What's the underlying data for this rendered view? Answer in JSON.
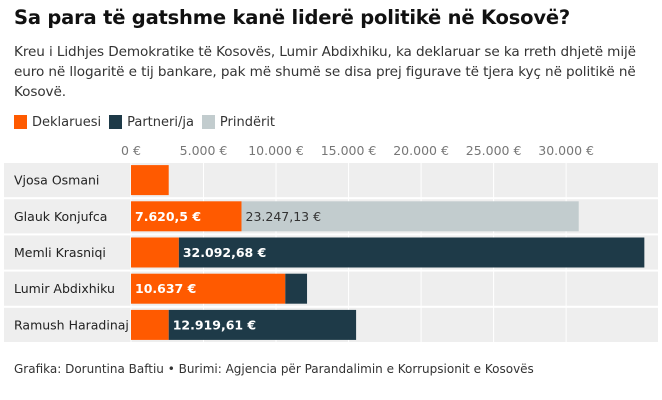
{
  "title": "Sa para të gatshme kanë liderë politikë në Kosovë?",
  "subtitle": "Kreu i Lidhjes Demokratike të Kosovës, Lumir Abdixhiku, ka deklaruar se ka rreth dhjetë mijë euro në llogaritë e tij bankare, pak më shumë se disa prej figurave të tjera kyç në politikë në Kosovë.",
  "footer": "Grafika: Doruntina Baftiu • Burimi: Agjencia për Parandalimin e Korrupsionit e Kosovës",
  "chart_data": {
    "type": "bar",
    "orientation": "horizontal",
    "stacked": true,
    "categories": [
      "Vjosa Osmani",
      "Glauk Konjufca",
      "Memli Krasniqi",
      "Lumir Abdixhiku",
      "Ramush Haradinaj"
    ],
    "x_ticks": [
      0,
      5000,
      10000,
      15000,
      20000,
      25000,
      30000
    ],
    "x_tick_labels": [
      "0 €",
      "5.000 €",
      "10.000 €",
      "15.000 €",
      "20.000 €",
      "25.000 €",
      "30.000 €"
    ],
    "xlim": [
      0,
      35300
    ],
    "legend_position": "top-left",
    "grid": true,
    "series": [
      {
        "name": "Deklaruesi",
        "color": "#FF5A00",
        "values": [
          2600,
          7620.5,
          3300,
          10637,
          2600
        ],
        "labels": [
          "",
          "7.620,5 €",
          "",
          "10.637 €",
          ""
        ]
      },
      {
        "name": "Partneri/ja",
        "color": "#1E3A48",
        "values": [
          0,
          0,
          32092.68,
          1500,
          12919.61
        ],
        "labels": [
          "",
          "",
          "32.092,68 €",
          "",
          "12.919,61 €"
        ]
      },
      {
        "name": "Prindërit",
        "color": "#C2CCCE",
        "values": [
          0,
          23247.13,
          0,
          0,
          0
        ],
        "labels": [
          "",
          "23.247,13 €",
          "",
          "",
          ""
        ]
      }
    ]
  }
}
